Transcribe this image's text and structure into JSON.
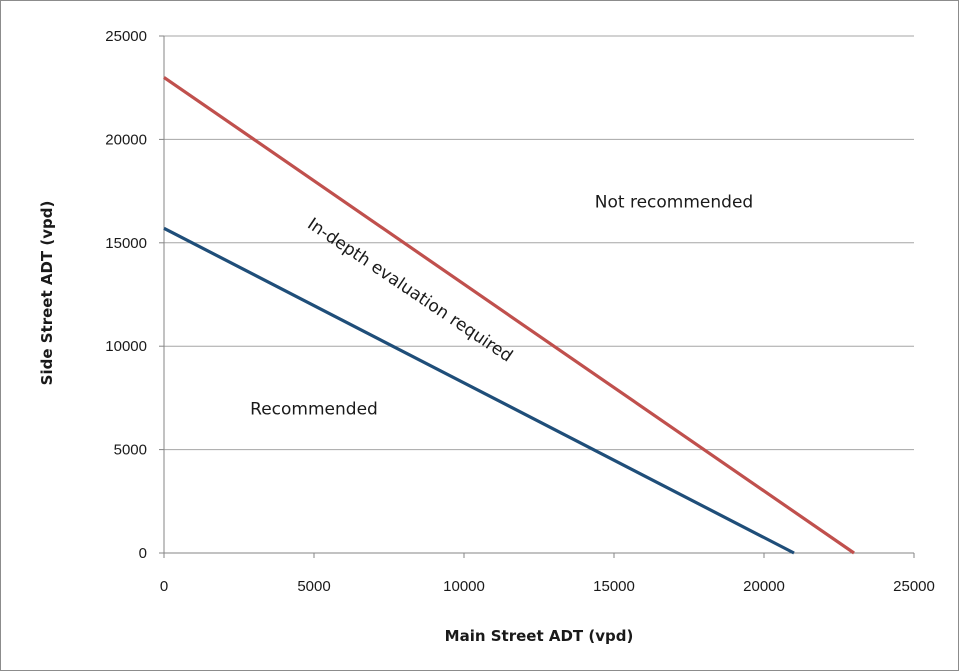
{
  "chart_data": {
    "type": "line",
    "title": "",
    "xlabel": "Main Street ADT (vpd)",
    "ylabel": "Side Street ADT (vpd)",
    "xlim": [
      0,
      25000
    ],
    "ylim": [
      0,
      25000
    ],
    "x_ticks": [
      "0",
      "5000",
      "10000",
      "15000",
      "20000",
      "25000"
    ],
    "y_ticks": [
      "0",
      "5000",
      "10000",
      "15000",
      "20000",
      "25000"
    ],
    "grid": "horizontal",
    "legend": "none",
    "series": [
      {
        "color": "#c0504d",
        "points": [
          [
            0,
            23000
          ],
          [
            23000,
            0
          ]
        ]
      },
      {
        "color": "#1f4e79",
        "points": [
          [
            0,
            15700
          ],
          [
            21000,
            0
          ]
        ]
      }
    ],
    "annotations": [
      {
        "id": "not-recommended",
        "text": "Not recommended",
        "x": 17000,
        "y": 16700,
        "rotation": 0
      },
      {
        "id": "in-depth",
        "text": "In-depth evaluation required",
        "x": 8100,
        "y": 12500,
        "rotation": 34
      },
      {
        "id": "recommended",
        "text": "Recommended",
        "x": 5000,
        "y": 6700,
        "rotation": 0
      }
    ]
  }
}
